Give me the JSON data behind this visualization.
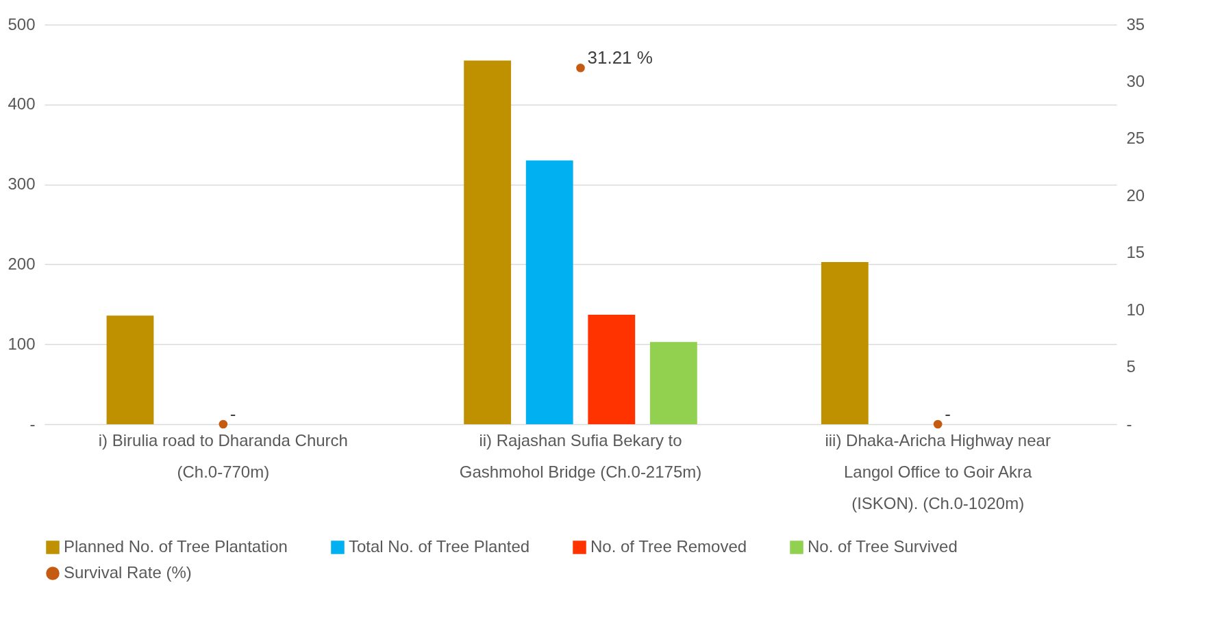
{
  "chart_data": {
    "type": "bar",
    "categories": [
      "i) Birulia road to Dharanda Church (Ch.0-770m)",
      "ii) Rajashan Sufia Bekary to Gashmohol Bridge (Ch.0-2175m)",
      "iii) Dhaka-Aricha Highway near Langol Office to Goir Akra (ISKON). (Ch.0-1020m)"
    ],
    "series": [
      {
        "name": "Planned No. of Tree Plantation",
        "color": "#bf9000",
        "values": [
          136,
          455,
          203
        ]
      },
      {
        "name": "Total No. of Tree Planted",
        "color": "#00b0f0",
        "values": [
          0,
          330,
          0
        ]
      },
      {
        "name": "No. of Tree Removed",
        "color": "#ff3300",
        "values": [
          0,
          137,
          0
        ]
      },
      {
        "name": "No. of Tree Survived",
        "color": "#92d050",
        "values": [
          0,
          103,
          0
        ]
      },
      {
        "name": "Survival Rate (%)",
        "type": "scatter",
        "axis": "y2",
        "color": "#c55a11",
        "values": [
          0,
          31.21,
          0
        ],
        "value_labels": [
          "-",
          "31.21 %",
          "-"
        ]
      }
    ],
    "ylim": [
      0,
      500
    ],
    "yticks": [
      {
        "value": 0,
        "label": "-"
      },
      100,
      200,
      300,
      400,
      500
    ],
    "y2lim": [
      0,
      35
    ],
    "y2ticks": [
      {
        "value": 0,
        "label": "-"
      },
      5,
      10,
      15,
      20,
      25,
      30,
      35
    ],
    "grid": "y",
    "legend": "bottom",
    "marker": "circle"
  }
}
